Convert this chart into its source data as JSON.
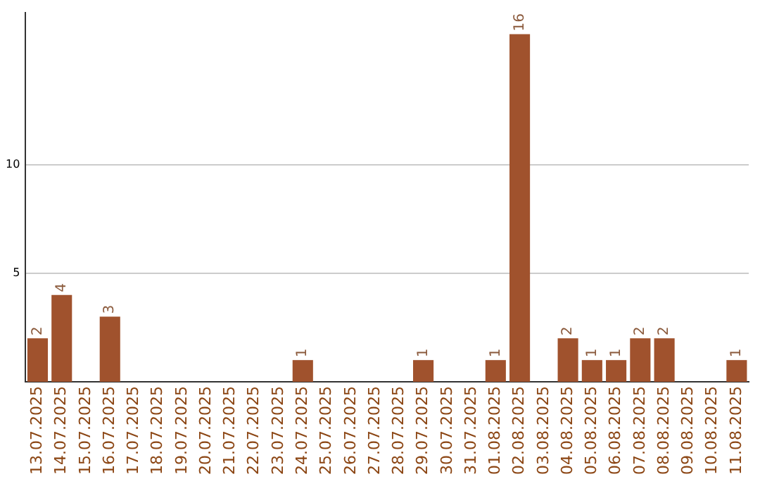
{
  "chart_data": {
    "type": "bar",
    "categories": [
      "13.07.2025",
      "14.07.2025",
      "15.07.2025",
      "16.07.2025",
      "17.07.2025",
      "18.07.2025",
      "19.07.2025",
      "20.07.2025",
      "21.07.2025",
      "22.07.2025",
      "23.07.2025",
      "24.07.2025",
      "25.07.2025",
      "26.07.2025",
      "27.07.2025",
      "28.07.2025",
      "29.07.2025",
      "30.07.2025",
      "31.07.2025",
      "01.08.2025",
      "02.08.2025",
      "03.08.2025",
      "04.08.2025",
      "05.08.2025",
      "06.08.2025",
      "07.08.2025",
      "08.08.2025",
      "09.08.2025",
      "10.08.2025",
      "11.08.2025"
    ],
    "values": [
      2,
      4,
      0,
      3,
      0,
      0,
      0,
      0,
      0,
      0,
      0,
      1,
      0,
      0,
      0,
      0,
      1,
      0,
      0,
      1,
      16,
      0,
      2,
      1,
      1,
      2,
      2,
      0,
      0,
      1
    ],
    "value_labels": [
      "2",
      "4",
      null,
      "3",
      null,
      null,
      null,
      null,
      null,
      null,
      null,
      "1",
      null,
      null,
      null,
      null,
      "1",
      null,
      null,
      "1",
      "16",
      null,
      "2",
      "1",
      "1",
      "2",
      "2",
      null,
      null,
      "1"
    ],
    "color": "#a0522d",
    "ylim": [
      0,
      17
    ],
    "yticks": [
      5,
      10
    ],
    "grid": "y"
  }
}
